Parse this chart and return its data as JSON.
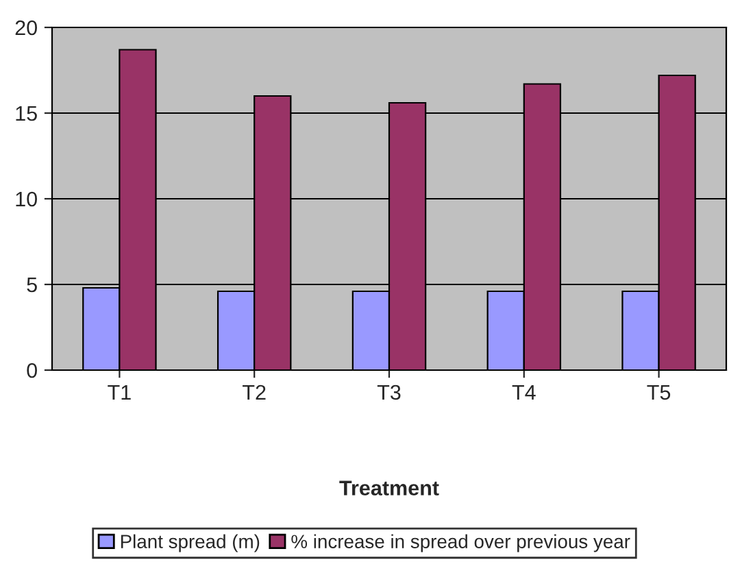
{
  "chart_data": {
    "type": "bar",
    "categories": [
      "T1",
      "T2",
      "T3",
      "T4",
      "T5"
    ],
    "xlabel": "Treatment",
    "series": [
      {
        "name": "Plant spread (m)",
        "color": "#9999ff",
        "values": [
          4.8,
          4.6,
          4.6,
          4.6,
          4.6
        ]
      },
      {
        "name": "% increase in spread over previous year",
        "color": "#993366",
        "values": [
          18.7,
          16.0,
          15.6,
          16.7,
          17.2
        ]
      }
    ],
    "ylim": [
      0,
      20
    ],
    "yticks": [
      0,
      5,
      10,
      15,
      20
    ],
    "grid": "y",
    "legend": "bottom"
  }
}
